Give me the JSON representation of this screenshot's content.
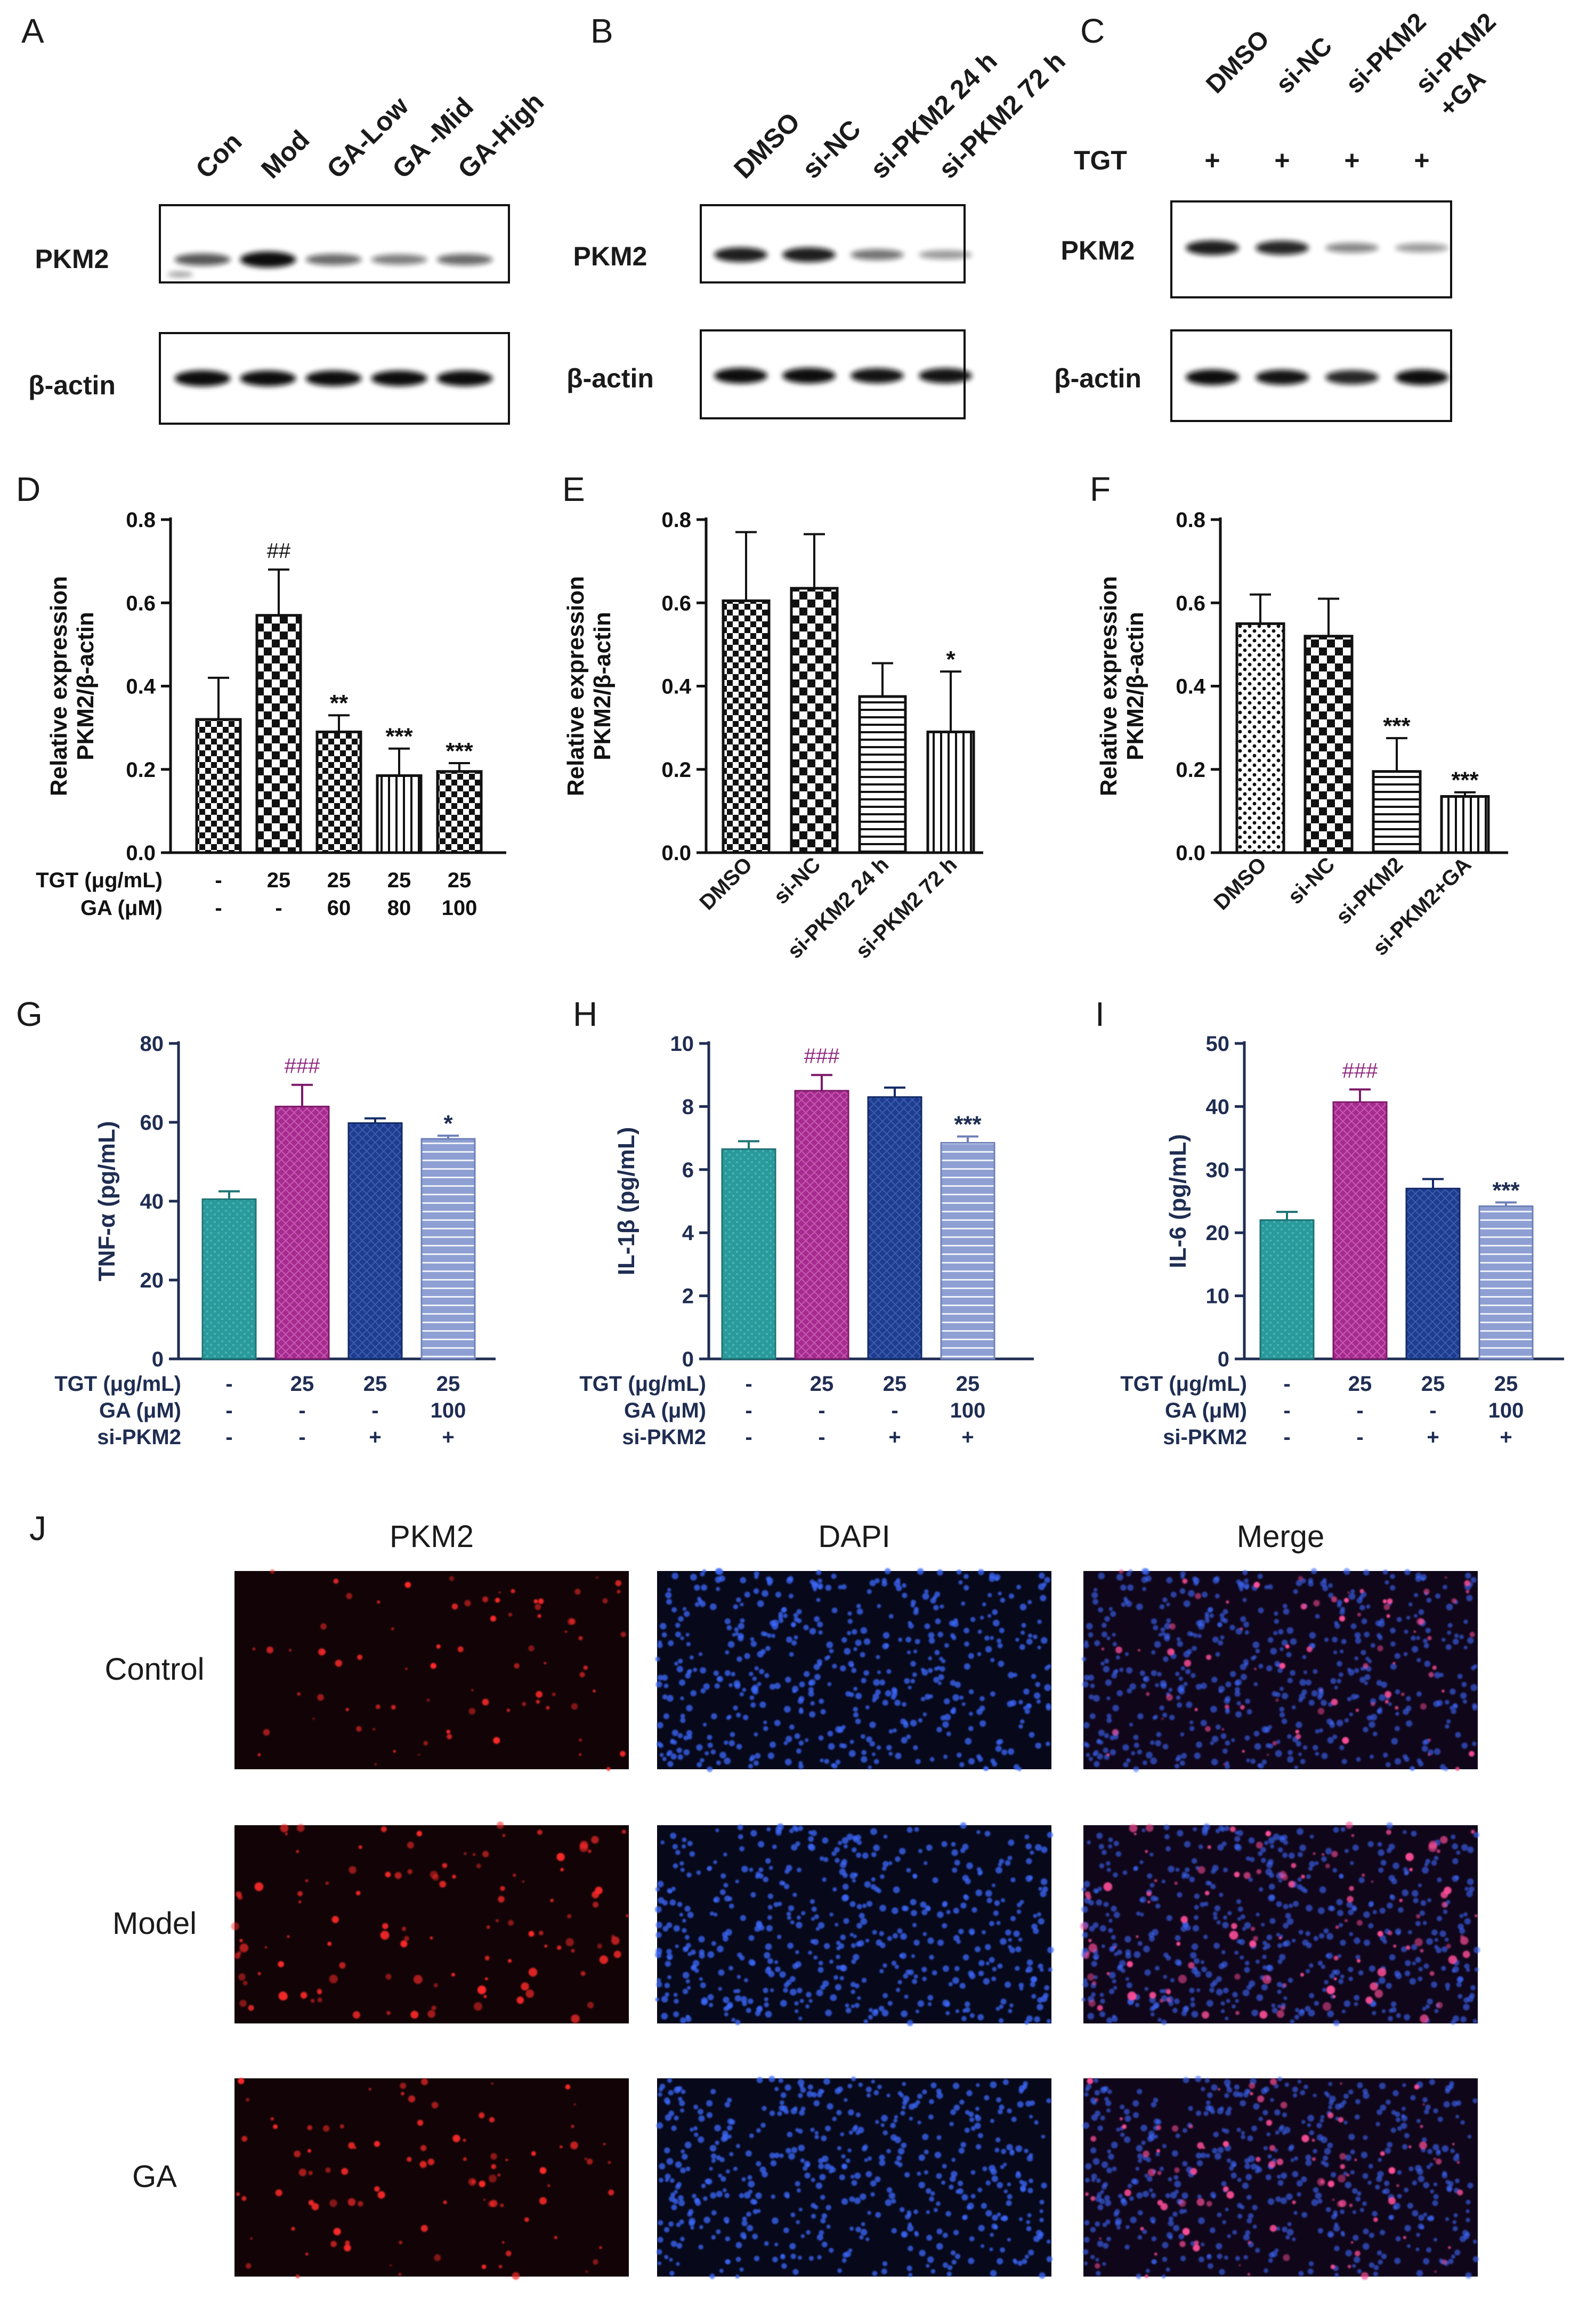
{
  "panel_letters": [
    "A",
    "B",
    "C",
    "D",
    "E",
    "F",
    "G",
    "H",
    "I",
    "J"
  ],
  "blots": [
    {
      "letter": "A",
      "lanes": [
        "Con",
        "Mod",
        "GA-Low",
        "GA -Mid",
        "GA-High"
      ],
      "rows": [
        {
          "label": "PKM2",
          "intensities": [
            0.55,
            1.0,
            0.45,
            0.35,
            0.45
          ]
        },
        {
          "label": "β-actin",
          "intensities": [
            1.0,
            0.95,
            0.95,
            0.95,
            0.95
          ]
        }
      ]
    },
    {
      "letter": "B",
      "lanes": [
        "DMSO",
        "si-NC",
        "si-PKM2 24 h",
        "si-PKM2 72 h"
      ],
      "rows": [
        {
          "label": "PKM2",
          "intensities": [
            0.85,
            0.85,
            0.4,
            0.2
          ]
        },
        {
          "label": "β-actin",
          "intensities": [
            0.95,
            0.95,
            0.9,
            0.9
          ]
        }
      ]
    },
    {
      "letter": "C",
      "lanes": [
        "DMSO",
        "si-NC",
        "si-PKM2",
        "si-PKM2\n+GA"
      ],
      "treat_label": "TGT",
      "treat_marks": [
        "+",
        "+",
        "+",
        "+"
      ],
      "rows": [
        {
          "label": "PKM2",
          "intensities": [
            0.85,
            0.8,
            0.3,
            0.2
          ]
        },
        {
          "label": "β-actin",
          "intensities": [
            0.95,
            0.9,
            0.8,
            0.95
          ]
        }
      ]
    }
  ],
  "chart_data": [
    {
      "panel": "D",
      "type": "bar",
      "ylabel": "Relative expression\nPKM2/β-actin",
      "ylim": [
        0,
        0.8
      ],
      "yticks": [
        "0.0",
        "0.2",
        "0.4",
        "0.6",
        "0.8"
      ],
      "values": [
        0.32,
        0.57,
        0.29,
        0.185,
        0.195
      ],
      "errors": [
        0.1,
        0.11,
        0.04,
        0.065,
        0.02
      ],
      "annotations": [
        "",
        "##",
        "**",
        "***",
        "***"
      ],
      "cond_rows": [
        {
          "label": "TGT (μg/mL)",
          "values": [
            "-",
            "25",
            "25",
            "25",
            "25"
          ]
        },
        {
          "label": "GA (μM)",
          "values": [
            "-",
            "-",
            "60",
            "80",
            "100"
          ]
        }
      ]
    },
    {
      "panel": "E",
      "type": "bar",
      "ylabel": "Relative expression\nPKM2/β-actin",
      "ylim": [
        0,
        0.8
      ],
      "yticks": [
        "0.0",
        "0.2",
        "0.4",
        "0.6",
        "0.8"
      ],
      "categories": [
        "DMSO",
        "si-NC",
        "si-PKM2 24 h",
        "si-PKM2 72 h"
      ],
      "values": [
        0.605,
        0.635,
        0.375,
        0.29
      ],
      "errors": [
        0.165,
        0.13,
        0.08,
        0.145
      ],
      "annotations": [
        "",
        "",
        "",
        "*"
      ]
    },
    {
      "panel": "F",
      "type": "bar",
      "ylabel": "Relative expression\nPKM2/β-actin",
      "ylim": [
        0,
        0.8
      ],
      "yticks": [
        "0.0",
        "0.2",
        "0.4",
        "0.6",
        "0.8"
      ],
      "categories": [
        "DMSO",
        "si-NC",
        "si-PKM2",
        "si-PKM2+GA"
      ],
      "values": [
        0.55,
        0.52,
        0.195,
        0.135
      ],
      "errors": [
        0.07,
        0.09,
        0.08,
        0.01
      ],
      "annotations": [
        "",
        "",
        "***",
        "***"
      ]
    },
    {
      "panel": "G",
      "type": "bar",
      "ylabel": "TNF-α (pg/mL)",
      "ylim": [
        0,
        80
      ],
      "yticks": [
        "0",
        "20",
        "40",
        "60",
        "80"
      ],
      "values": [
        40.5,
        64,
        59.8,
        55.8
      ],
      "errors": [
        2.0,
        5.5,
        1.2,
        0.8
      ],
      "annotations": [
        "",
        "###",
        "",
        "*"
      ],
      "cond_rows": [
        {
          "label": "TGT (μg/mL)",
          "values": [
            "-",
            "25",
            "25",
            "25"
          ]
        },
        {
          "label": "GA (μM)",
          "values": [
            "-",
            "-",
            "-",
            "100"
          ]
        },
        {
          "label": "si-PKM2",
          "values": [
            "-",
            "-",
            "+",
            "+"
          ]
        }
      ]
    },
    {
      "panel": "H",
      "type": "bar",
      "ylabel": "IL-1β (pg/mL)",
      "ylim": [
        0,
        10
      ],
      "yticks": [
        "0",
        "2",
        "4",
        "6",
        "8",
        "10"
      ],
      "values": [
        6.65,
        8.5,
        8.3,
        6.85
      ],
      "errors": [
        0.25,
        0.5,
        0.3,
        0.2
      ],
      "annotations": [
        "",
        "###",
        "",
        "***"
      ],
      "cond_rows": [
        {
          "label": "TGT (μg/mL)",
          "values": [
            "-",
            "25",
            "25",
            "25"
          ]
        },
        {
          "label": "GA (μM)",
          "values": [
            "-",
            "-",
            "-",
            "100"
          ]
        },
        {
          "label": "si-PKM2",
          "values": [
            "-",
            "-",
            "+",
            "+"
          ]
        }
      ]
    },
    {
      "panel": "I",
      "type": "bar",
      "ylabel": "IL-6 (pg/mL)",
      "ylim": [
        0,
        50
      ],
      "yticks": [
        "0",
        "10",
        "20",
        "30",
        "40",
        "50"
      ],
      "values": [
        22,
        40.7,
        27,
        24.2
      ],
      "errors": [
        1.3,
        2.0,
        1.5,
        0.6
      ],
      "annotations": [
        "",
        "###",
        "",
        "***"
      ],
      "cond_rows": [
        {
          "label": "TGT (μg/mL)",
          "values": [
            "-",
            "25",
            "25",
            "25"
          ]
        },
        {
          "label": "GA (μM)",
          "values": [
            "-",
            "-",
            "-",
            "100"
          ]
        },
        {
          "label": "si-PKM2",
          "values": [
            "-",
            "-",
            "+",
            "+"
          ]
        }
      ]
    }
  ],
  "micrographs": {
    "columns": [
      "PKM2",
      "DAPI",
      "Merge"
    ],
    "rows": [
      "Control",
      "Model",
      "GA"
    ],
    "signal_density": [
      0.35,
      0.7,
      0.5
    ]
  },
  "colors": {
    "text": "#1a1a1a",
    "navy_text": "#1f2d52",
    "elisa_bars": [
      "#2b9a9c",
      "#a62a8f",
      "#1f3d8f",
      "#8e9fd3"
    ],
    "pkm2_channel": "#ff2a2a",
    "dapi_channel": "#3d6bff",
    "micrograph_bg": "#07070c"
  }
}
